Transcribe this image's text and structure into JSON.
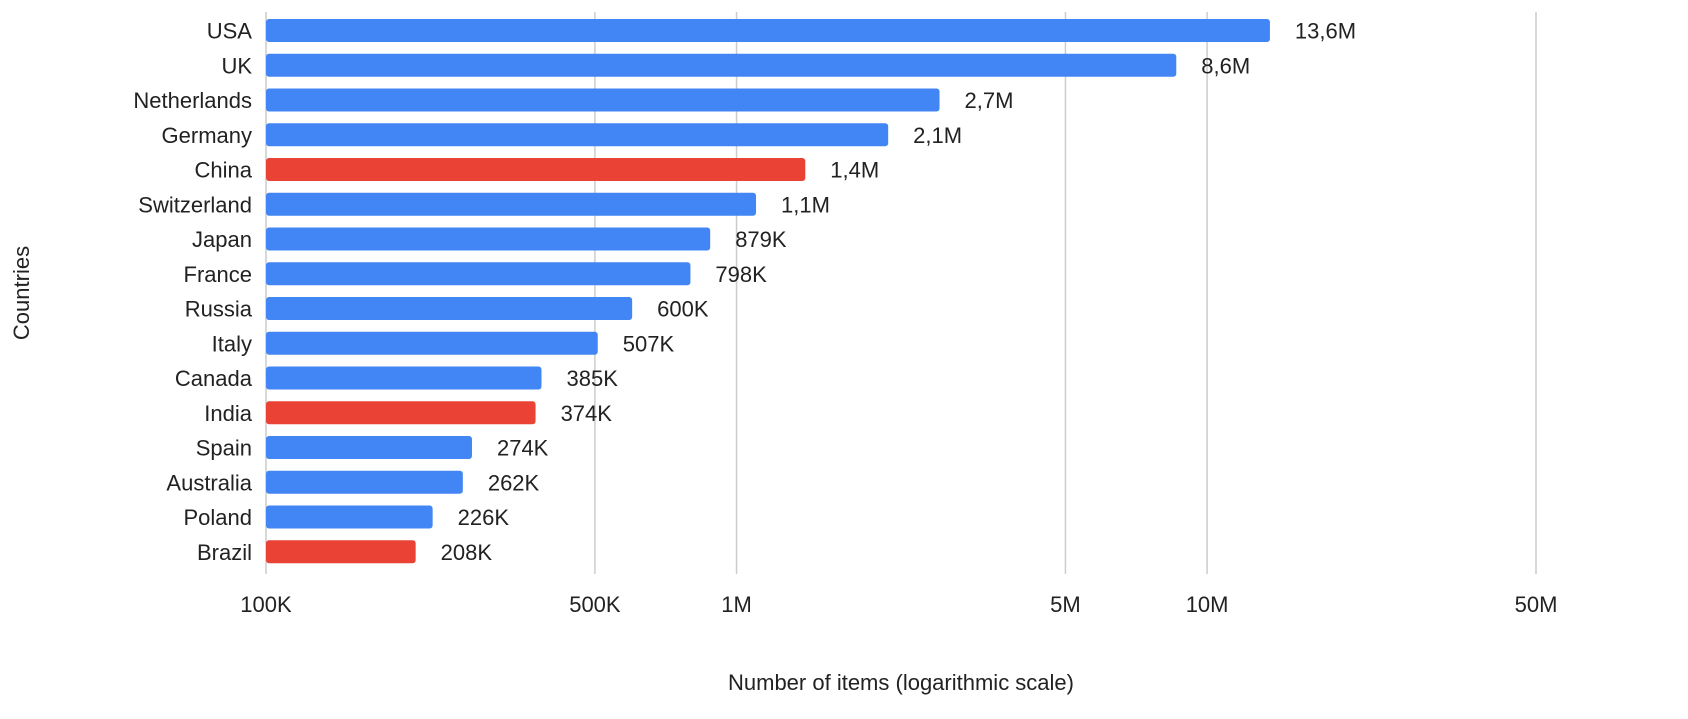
{
  "chart_data": {
    "type": "bar",
    "orientation": "horizontal",
    "xlabel": "Number of items (logarithmic scale)",
    "ylabel": "Countries",
    "x_scale": "log",
    "xlim": [
      100000,
      50000000
    ],
    "grid": true,
    "legend": "none",
    "x_ticks": [
      {
        "value": 100000,
        "label": "100K"
      },
      {
        "value": 500000,
        "label": "500K"
      },
      {
        "value": 1000000,
        "label": "1M"
      },
      {
        "value": 5000000,
        "label": "5M"
      },
      {
        "value": 10000000,
        "label": "10M"
      },
      {
        "value": 50000000,
        "label": "50M"
      }
    ],
    "bars": [
      {
        "category": "USA",
        "value": 13600000,
        "label": "13,6M",
        "highlight": false
      },
      {
        "category": "UK",
        "value": 8600000,
        "label": "8,6M",
        "highlight": false
      },
      {
        "category": "Netherlands",
        "value": 2700000,
        "label": "2,7M",
        "highlight": false
      },
      {
        "category": "Germany",
        "value": 2100000,
        "label": "2,1M",
        "highlight": false
      },
      {
        "category": "China",
        "value": 1400000,
        "label": "1,4M",
        "highlight": true
      },
      {
        "category": "Switzerland",
        "value": 1100000,
        "label": "1,1M",
        "highlight": false
      },
      {
        "category": "Japan",
        "value": 879000,
        "label": "879K",
        "highlight": false
      },
      {
        "category": "France",
        "value": 798000,
        "label": "798K",
        "highlight": false
      },
      {
        "category": "Russia",
        "value": 600000,
        "label": "600K",
        "highlight": false
      },
      {
        "category": "Italy",
        "value": 507000,
        "label": "507K",
        "highlight": false
      },
      {
        "category": "Canada",
        "value": 385000,
        "label": "385K",
        "highlight": false
      },
      {
        "category": "India",
        "value": 374000,
        "label": "374K",
        "highlight": true
      },
      {
        "category": "Spain",
        "value": 274000,
        "label": "274K",
        "highlight": false
      },
      {
        "category": "Australia",
        "value": 262000,
        "label": "262K",
        "highlight": false
      },
      {
        "category": "Poland",
        "value": 226000,
        "label": "226K",
        "highlight": false
      },
      {
        "category": "Brazil",
        "value": 208000,
        "label": "208K",
        "highlight": true
      }
    ],
    "colors": {
      "default": "#4285f4",
      "highlight": "#ea4335",
      "grid": "#cccccc",
      "text": "#222222"
    }
  }
}
